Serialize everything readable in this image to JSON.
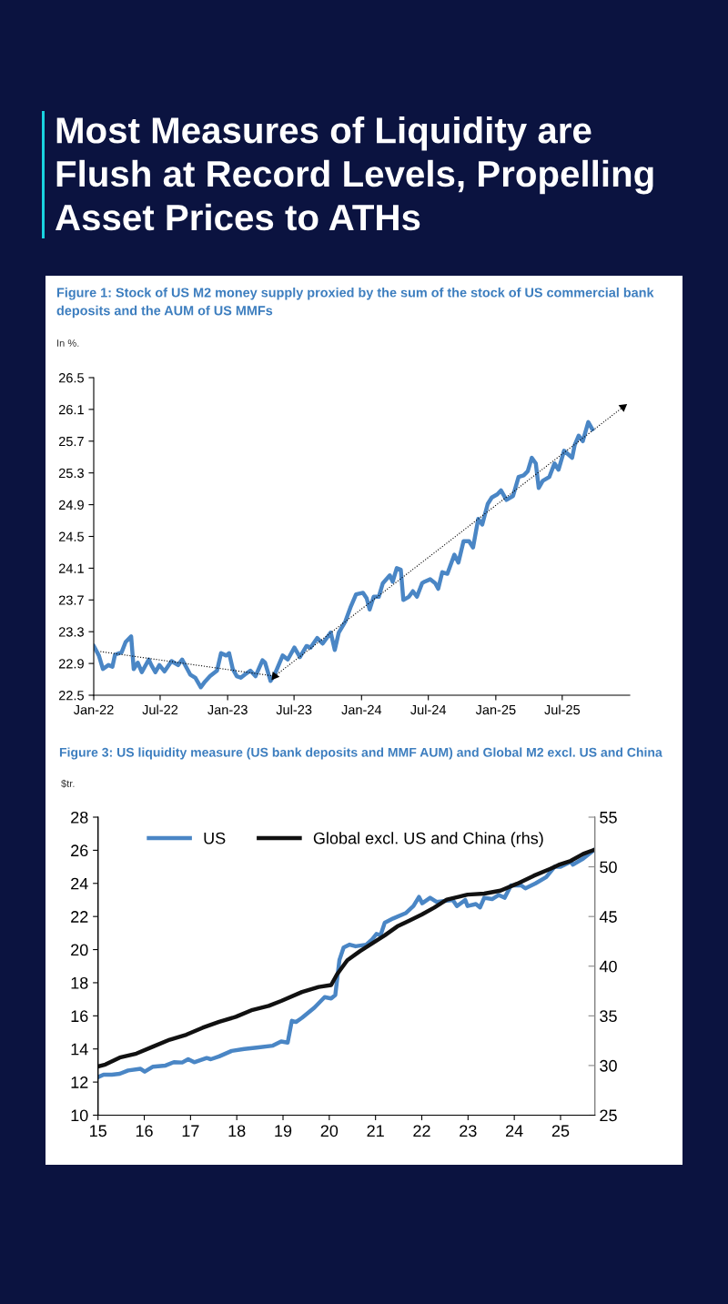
{
  "chart_data": [
    {
      "type": "line",
      "title": "Most Measures of Liquidity are Flush at Record Levels, Propelling Asset Prices to ATHs",
      "subtitle": "Figure 1: Stock of US M2 money supply proxied by the sum of the stock of US commercial bank deposits and the AUM of US MMFs",
      "ylabel": "In %.",
      "series": [
        {
          "color": "#4a86c5",
          "x": [
            "2022-01-01",
            "2022-01-15",
            "2022-01-26",
            "2022-02-10",
            "2022-02-21",
            "2022-02-28",
            "2022-03-18",
            "2022-03-29",
            "2022-04-13",
            "2022-04-20",
            "2022-05-01",
            "2022-05-12",
            "2022-05-31",
            "2022-06-07",
            "2022-06-18",
            "2022-06-29",
            "2022-07-13",
            "2022-08-01",
            "2022-08-19",
            "2022-08-30",
            "2022-09-21",
            "2022-10-05",
            "2022-10-20",
            "2022-10-31",
            "2022-11-14",
            "2022-12-03",
            "2022-12-14",
            "2022-12-28",
            "2023-01-05",
            "2023-01-15",
            "2023-01-26",
            "2023-02-06",
            "2023-02-17",
            "2023-03-04",
            "2023-03-18",
            "2023-04-06",
            "2023-04-13",
            "2023-04-28",
            "2023-05-09",
            "2023-05-31",
            "2023-06-14",
            "2023-07-02",
            "2023-07-17",
            "2023-08-04",
            "2023-08-15",
            "2023-09-02",
            "2023-09-17",
            "2023-10-09",
            "2023-10-20",
            "2023-10-31",
            "2023-11-18",
            "2023-12-03",
            "2023-12-17",
            "2024-01-05",
            "2024-01-15",
            "2024-01-23",
            "2024-02-03",
            "2024-02-17",
            "2024-02-28",
            "2024-03-18",
            "2024-03-26",
            "2024-04-06",
            "2024-04-17",
            "2024-04-24",
            "2024-05-09",
            "2024-05-20",
            "2024-05-31",
            "2024-06-14",
            "2024-06-21",
            "2024-07-06",
            "2024-07-20",
            "2024-07-28",
            "2024-08-08",
            "2024-08-22",
            "2024-09-10",
            "2024-09-21",
            "2024-10-05",
            "2024-10-20",
            "2024-10-31",
            "2024-11-14",
            "2024-11-25",
            "2024-12-10",
            "2024-12-21",
            "2025-01-05",
            "2025-01-15",
            "2025-01-30",
            "2025-02-17",
            "2025-03-04",
            "2025-03-18",
            "2025-03-29",
            "2025-04-09",
            "2025-04-20",
            "2025-04-28",
            "2025-05-09",
            "2025-05-27",
            "2025-06-10",
            "2025-06-21",
            "2025-07-06",
            "2025-07-28",
            "2025-08-04",
            "2025-08-15",
            "2025-08-26",
            "2025-09-10",
            "2025-09-21"
          ],
          "values": [
            23.12,
            23.0,
            22.83,
            22.88,
            22.86,
            23.01,
            23.04,
            23.17,
            23.24,
            22.83,
            22.91,
            22.79,
            22.95,
            22.88,
            22.79,
            22.88,
            22.8,
            22.93,
            22.88,
            22.95,
            22.76,
            22.72,
            22.6,
            22.67,
            22.74,
            22.81,
            23.03,
            23.0,
            23.03,
            22.83,
            22.74,
            22.72,
            22.76,
            22.81,
            22.74,
            22.94,
            22.91,
            22.68,
            22.76,
            23.0,
            22.95,
            23.1,
            22.98,
            23.12,
            23.1,
            23.22,
            23.15,
            23.29,
            23.07,
            23.29,
            23.43,
            23.62,
            23.77,
            23.79,
            23.72,
            23.58,
            23.74,
            23.74,
            23.91,
            24.01,
            23.93,
            24.1,
            24.08,
            23.7,
            23.74,
            23.81,
            23.74,
            23.91,
            23.93,
            23.96,
            23.91,
            23.84,
            24.05,
            24.03,
            24.27,
            24.17,
            24.44,
            24.44,
            24.36,
            24.72,
            24.65,
            24.91,
            24.99,
            25.03,
            25.08,
            24.96,
            25.01,
            25.25,
            25.27,
            25.32,
            25.49,
            25.42,
            25.11,
            25.2,
            25.25,
            25.42,
            25.34,
            25.58,
            25.49,
            25.65,
            25.77,
            25.7,
            25.94,
            25.85
          ]
        },
        {
          "color": "#000000",
          "line_style": "dotted",
          "x": [
            "2022-01-19",
            "2023-05-09"
          ],
          "values": [
            23.05,
            22.74
          ]
        },
        {
          "color": "#000000",
          "line_style": "dotted",
          "x": [
            "2023-05-09",
            "2025-12-14"
          ],
          "values": [
            22.74,
            26.13
          ]
        }
      ],
      "xlim": [
        "2022-01-01",
        "2026-01-01"
      ],
      "xticks": [
        {
          "value": "2022-01",
          "label": "Jan-22"
        },
        {
          "value": "2022-07",
          "label": "Jul-22"
        },
        {
          "value": "2023-01",
          "label": "Jan-23"
        },
        {
          "value": "2023-07",
          "label": "Jul-23"
        },
        {
          "value": "2024-01",
          "label": "Jan-24"
        },
        {
          "value": "2024-07",
          "label": "Jul-24"
        },
        {
          "value": "2025-01",
          "label": "Jan-25"
        },
        {
          "value": "2025-07",
          "label": "Jul-25"
        }
      ],
      "ylim": [
        22.5,
        26.5
      ],
      "yticks": [
        22.5,
        22.9,
        23.3,
        23.7,
        24.1,
        24.5,
        24.9,
        25.3,
        25.7,
        26.1,
        26.5
      ],
      "grid": false,
      "legend": false
    },
    {
      "type": "line",
      "title": "Figure 3: US liquidity measure (US bank deposits and MMF AUM) and Global M2 excl. US and China",
      "ylabel": "$tr.",
      "series": [
        {
          "name": "US",
          "color": "#4a86c5",
          "x": [
            15.0,
            15.12,
            15.3,
            15.47,
            15.65,
            15.92,
            16.01,
            16.19,
            16.46,
            16.64,
            16.82,
            16.95,
            17.08,
            17.35,
            17.44,
            17.62,
            17.89,
            18.16,
            18.43,
            18.78,
            18.96,
            19.1,
            19.19,
            19.28,
            19.41,
            19.68,
            19.9,
            20.04,
            20.13,
            20.22,
            20.31,
            20.44,
            20.57,
            20.8,
            20.93,
            21.02,
            21.11,
            21.2,
            21.38,
            21.65,
            21.82,
            21.94,
            22.01,
            22.18,
            22.32,
            22.67,
            22.76,
            22.94,
            22.99,
            23.17,
            23.26,
            23.35,
            23.52,
            23.66,
            23.79,
            23.93,
            24.15,
            24.24,
            24.46,
            24.69,
            24.87,
            25.0,
            25.22,
            25.27,
            25.49,
            25.72
          ],
          "values": [
            12.3,
            12.45,
            12.45,
            12.5,
            12.7,
            12.8,
            12.63,
            12.93,
            13.0,
            13.2,
            13.18,
            13.38,
            13.2,
            13.45,
            13.38,
            13.55,
            13.88,
            14.0,
            14.08,
            14.2,
            14.45,
            14.38,
            15.7,
            15.63,
            15.88,
            16.5,
            17.13,
            17.05,
            17.25,
            19.38,
            20.13,
            20.3,
            20.2,
            20.3,
            20.63,
            20.95,
            20.88,
            21.63,
            21.88,
            22.2,
            22.63,
            23.18,
            22.8,
            23.13,
            22.88,
            23.0,
            22.63,
            23.0,
            22.63,
            22.75,
            22.55,
            23.13,
            23.05,
            23.3,
            23.13,
            23.88,
            23.88,
            23.7,
            24.0,
            24.38,
            25.0,
            25.0,
            25.3,
            25.13,
            25.5,
            26.0
          ]
        },
        {
          "name": "Global excl. US and China (rhs)",
          "color": "#111111",
          "axis": "y2",
          "x": [
            15.0,
            15.16,
            15.47,
            15.83,
            16.19,
            16.55,
            16.91,
            17.26,
            17.62,
            17.98,
            18.34,
            18.69,
            18.96,
            19.41,
            19.77,
            20.04,
            20.17,
            20.39,
            20.66,
            20.93,
            21.2,
            21.47,
            21.74,
            22.0,
            22.27,
            22.54,
            22.81,
            22.99,
            23.35,
            23.7,
            24.06,
            24.42,
            24.78,
            24.96,
            25.22,
            25.49,
            25.72
          ],
          "values": [
            29.9,
            30.1,
            30.8,
            31.2,
            31.9,
            32.6,
            33.1,
            33.8,
            34.4,
            34.9,
            35.6,
            36.0,
            36.5,
            37.4,
            37.9,
            38.1,
            39.2,
            40.6,
            41.5,
            42.3,
            43.1,
            44.0,
            44.6,
            45.2,
            45.9,
            46.7,
            47.0,
            47.2,
            47.3,
            47.6,
            48.3,
            49.1,
            49.8,
            50.2,
            50.6,
            51.3,
            51.7
          ]
        }
      ],
      "xlim": [
        15,
        25.74
      ],
      "xticks": [
        15,
        16,
        17,
        18,
        19,
        20,
        21,
        22,
        23,
        24,
        25
      ],
      "ylim": [
        10,
        28
      ],
      "yticks": [
        10,
        12,
        14,
        16,
        18,
        20,
        22,
        24,
        26,
        28
      ],
      "y2lim": [
        25,
        55
      ],
      "y2ticks": [
        25,
        30,
        35,
        40,
        45,
        50,
        55
      ],
      "grid": false,
      "legend": "top"
    }
  ]
}
